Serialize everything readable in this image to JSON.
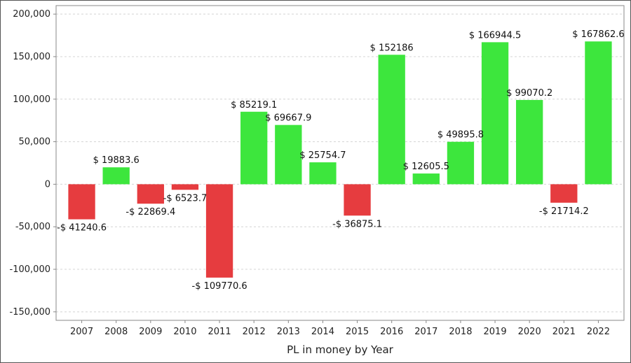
{
  "chart_data": {
    "type": "bar",
    "categories": [
      "2007",
      "2008",
      "2009",
      "2010",
      "2011",
      "2012",
      "2013",
      "2014",
      "2015",
      "2016",
      "2017",
      "2018",
      "2019",
      "2020",
      "2021",
      "2022"
    ],
    "values": [
      -41240.6,
      19883.6,
      -22869.4,
      -6523.7,
      -109770.6,
      85219.1,
      69667.9,
      25754.7,
      -36875.1,
      152186,
      12605.5,
      49895.8,
      166944.5,
      99070.2,
      -21714.2,
      167862.6
    ],
    "data_labels": [
      "-$ 41240.6",
      "$ 19883.6",
      "-$ 22869.4",
      "-$ 6523.7",
      "-$ 109770.6",
      "$ 85219.1",
      "$ 69667.9",
      "$ 25754.7",
      "-$ 36875.1",
      "$ 152186",
      "$ 12605.5",
      "$ 49895.8",
      "$ 166944.5",
      "$ 99070.2",
      "-$ 21714.2",
      "$ 167862.6"
    ],
    "title": "",
    "xlabel": "PL in money by Year",
    "ylabel": "",
    "ylim": [
      -160000,
      210000
    ],
    "yticks": [
      -150000,
      -100000,
      -50000,
      0,
      50000,
      100000,
      150000,
      200000
    ],
    "ytick_labels": [
      "-150,000",
      "-100,000",
      "-50,000",
      "0",
      "50,000",
      "100,000",
      "150,000",
      "200,000"
    ],
    "grid": true,
    "legend": "none",
    "colors": {
      "positive": "#3de63d",
      "negative": "#e63c3f",
      "grid": "#d4d4d4",
      "axis": "#888888"
    }
  }
}
